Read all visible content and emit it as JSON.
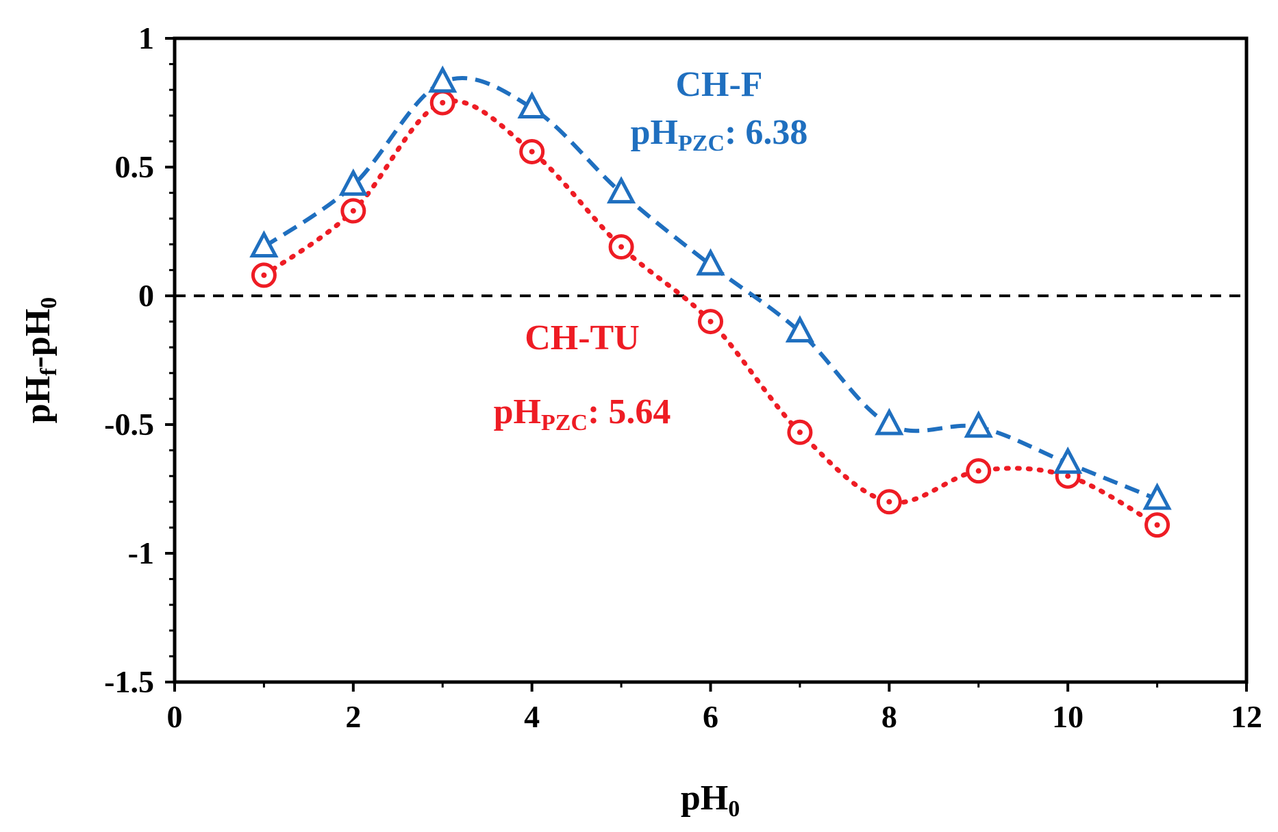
{
  "chart_data": {
    "type": "line",
    "title": "",
    "xlabel": {
      "base": "pH",
      "sub": "0"
    },
    "ylabel": {
      "base": "pH",
      "sub1": "f",
      "mid": "-pH",
      "sub2": "0"
    },
    "xlim": [
      0,
      12
    ],
    "ylim": [
      -1.5,
      1
    ],
    "x_ticks": [
      0,
      2,
      4,
      6,
      8,
      10,
      12
    ],
    "x_tick_labels": [
      "0",
      "2",
      "4",
      "6",
      "8",
      "10",
      "12"
    ],
    "y_ticks": [
      1,
      0.5,
      0,
      -0.5,
      -1,
      -1.5
    ],
    "y_tick_labels": [
      "1",
      "0.5",
      "0",
      "-0.5",
      "-1",
      "-1.5"
    ],
    "reference_line_y": 0,
    "grid": false,
    "series": [
      {
        "name": "CH-F",
        "color": "#1f6fbf",
        "marker": "triangle",
        "line_style": "dashed",
        "x": [
          1,
          2,
          3,
          4,
          5,
          6,
          7,
          8,
          9,
          10,
          11
        ],
        "values": [
          0.19,
          0.43,
          0.83,
          0.73,
          0.4,
          0.12,
          -0.14,
          -0.5,
          -0.51,
          -0.65,
          -0.79
        ]
      },
      {
        "name": "CH-TU",
        "color": "#ee1c24",
        "marker": "circle-dot",
        "line_style": "dotted",
        "x": [
          1,
          2,
          3,
          4,
          5,
          6,
          7,
          8,
          9,
          10,
          11
        ],
        "values": [
          0.08,
          0.33,
          0.75,
          0.56,
          0.19,
          -0.1,
          -0.53,
          -0.8,
          -0.68,
          -0.7,
          -0.89
        ]
      }
    ],
    "annotations": [
      {
        "series": "CH-F",
        "name": "CH-F",
        "label_base": "pH",
        "label_sub": "PZC",
        "label_value": ": 6.38",
        "color": "#1f6fbf"
      },
      {
        "series": "CH-TU",
        "name": "CH-TU",
        "label_base": "pH",
        "label_sub": "PZC",
        "label_value": ": 5.64",
        "color": "#ee1c24"
      }
    ]
  }
}
